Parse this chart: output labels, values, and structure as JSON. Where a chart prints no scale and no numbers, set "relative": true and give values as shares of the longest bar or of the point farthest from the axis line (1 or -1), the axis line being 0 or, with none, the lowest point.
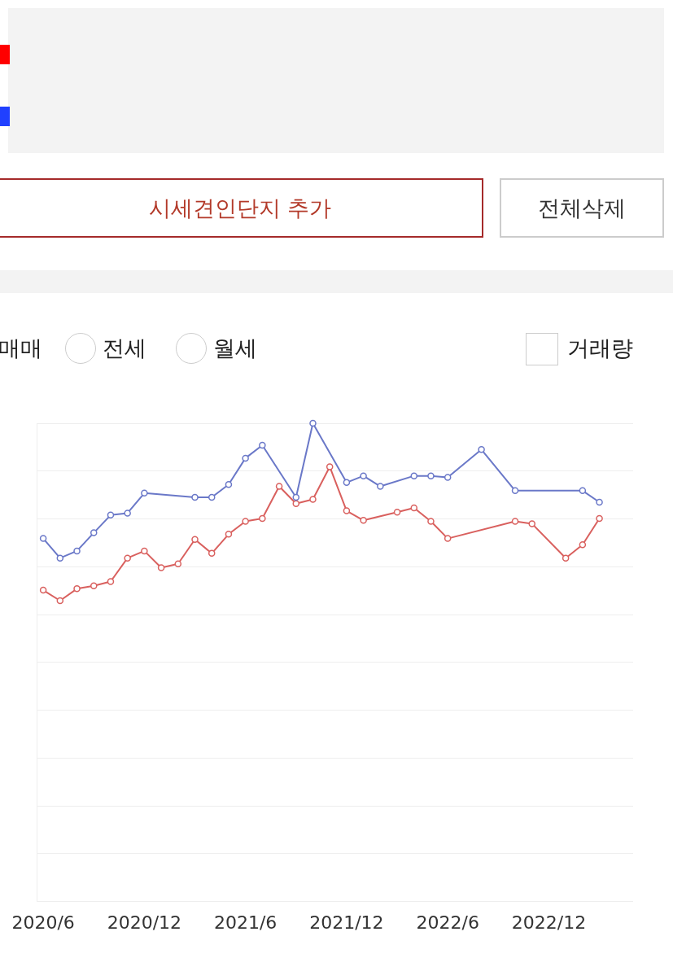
{
  "chart_data": {
    "type": "line",
    "relative": true,
    "grid": "y",
    "marker": "circle",
    "line_style": "solid",
    "legend": false,
    "xlim": [
      "2020-05-20",
      "2023-05-01"
    ],
    "xticks": [
      {
        "value": "2020-06",
        "label": "2020/6"
      },
      {
        "value": "2020-12",
        "label": "2020/12"
      },
      {
        "value": "2021-06",
        "label": "2021/6"
      },
      {
        "value": "2021-12",
        "label": "2021/12"
      },
      {
        "value": "2022-06",
        "label": "2022/6"
      },
      {
        "value": "2022-12",
        "label": "2022/12"
      }
    ],
    "annotations": [
      "시세견인단지 추가",
      "전체삭제",
      "매매",
      "전세",
      "월세",
      "거래량"
    ],
    "series": [
      {
        "color": "#6a78c8",
        "x": [
          "2020-06",
          "2020-07",
          "2020-08",
          "2020-09",
          "2020-10",
          "2020-11",
          "2020-12",
          "2021-03",
          "2021-04",
          "2021-05",
          "2021-06",
          "2021-07",
          "2021-09",
          "2021-10",
          "2021-12",
          "2022-01",
          "2022-02",
          "2022-04",
          "2022-05",
          "2022-06",
          "2022-08",
          "2022-10",
          "2023-02",
          "2023-03"
        ],
        "values": [
          0.759,
          0.718,
          0.733,
          0.771,
          0.808,
          0.812,
          0.854,
          0.845,
          0.845,
          0.872,
          0.927,
          0.954,
          0.845,
          1,
          0.876,
          0.89,
          0.868,
          0.89,
          0.89,
          0.887,
          0.945,
          0.859,
          0.859,
          0.835
        ]
      },
      {
        "color": "#d9605e",
        "x": [
          "2020-06",
          "2020-07",
          "2020-08",
          "2020-09",
          "2020-10",
          "2020-11",
          "2020-12",
          "2021-01",
          "2021-02",
          "2021-03",
          "2021-04",
          "2021-05",
          "2021-06",
          "2021-07",
          "2021-08",
          "2021-09",
          "2021-10",
          "2021-11",
          "2021-12",
          "2022-01",
          "2022-03",
          "2022-04",
          "2022-05",
          "2022-06",
          "2022-10",
          "2022-11",
          "2023-01",
          "2023-02",
          "2023-03"
        ],
        "values": [
          0.651,
          0.629,
          0.654,
          0.66,
          0.669,
          0.718,
          0.733,
          0.698,
          0.706,
          0.757,
          0.728,
          0.768,
          0.795,
          0.801,
          0.868,
          0.832,
          0.841,
          0.909,
          0.817,
          0.797,
          0.814,
          0.823,
          0.795,
          0.759,
          0.795,
          0.79,
          0.718,
          0.746,
          0.801
        ]
      }
    ]
  }
}
